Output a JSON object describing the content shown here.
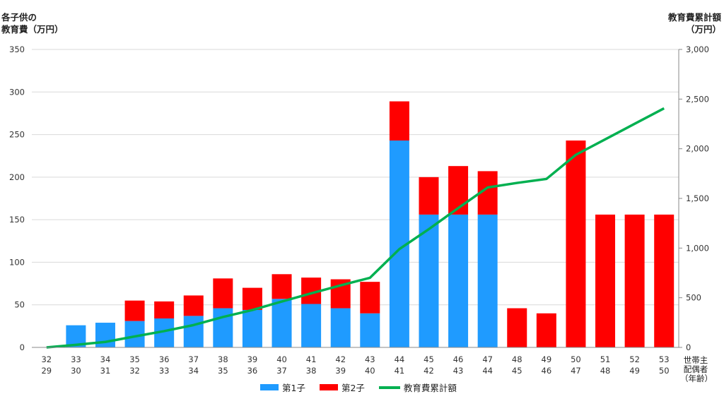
{
  "chart_data": {
    "type": "bar",
    "stacked": true,
    "ylabel_left_lines": [
      "各子供の",
      "教育費（万円）"
    ],
    "ylabel_right_lines": [
      "教育費累計額",
      "（万円）"
    ],
    "xlabel_lines": [
      "世帯主",
      "配偶者",
      "（年齢）"
    ],
    "categories_row1": [
      "32",
      "33",
      "34",
      "35",
      "36",
      "37",
      "38",
      "39",
      "40",
      "41",
      "42",
      "43",
      "44",
      "45",
      "46",
      "47",
      "48",
      "49",
      "50",
      "51",
      "52",
      "53"
    ],
    "categories_row2": [
      "29",
      "30",
      "31",
      "32",
      "33",
      "34",
      "35",
      "36",
      "37",
      "38",
      "39",
      "40",
      "41",
      "42",
      "43",
      "44",
      "45",
      "46",
      "47",
      "48",
      "49",
      "50"
    ],
    "ylim_left": [
      0,
      350
    ],
    "yticks_left": [
      "0",
      "50",
      "100",
      "150",
      "200",
      "250",
      "300",
      "350"
    ],
    "ylim_right": [
      0,
      3000
    ],
    "yticks_right": [
      "0",
      "500",
      "1,000",
      "1,500",
      "2,000",
      "2,500",
      "3,000"
    ],
    "grid": true,
    "legend_position": "bottom",
    "series": [
      {
        "name": "第1子",
        "type": "bar",
        "axis": "left",
        "color": "#1f9bff",
        "values": [
          0,
          26,
          29,
          31,
          34,
          37,
          46,
          44,
          57,
          51,
          46,
          40,
          243,
          156,
          156,
          156,
          0,
          0,
          0,
          0,
          0,
          0
        ]
      },
      {
        "name": "第2子",
        "type": "bar",
        "axis": "left",
        "color": "#ff0000",
        "values": [
          0,
          0,
          0,
          24,
          20,
          24,
          35,
          26,
          29,
          31,
          34,
          37,
          46,
          44,
          57,
          51,
          46,
          40,
          243,
          156,
          156,
          156
        ]
      },
      {
        "name": "教育費累計額",
        "type": "line",
        "axis": "right",
        "color": "#00b050",
        "values": [
          0,
          26,
          55,
          110,
          164,
          225,
          306,
          376,
          462,
          544,
          624,
          701,
          990,
          1190,
          1403,
          1610,
          1656,
          1696,
          1939,
          2095,
          2251,
          2407
        ]
      }
    ]
  }
}
